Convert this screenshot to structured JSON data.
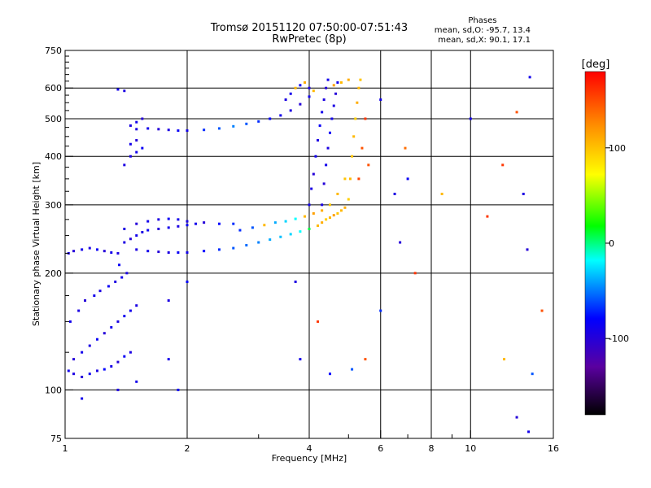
{
  "header": {
    "title_line1": "Tromsø 20151120 07:50:00-07:51:43",
    "title_line2": "RwPretec (8p)"
  },
  "phases": {
    "heading": "Phases",
    "o_line": "mean, sd,O: -95.7, 13.4",
    "x_line": "mean, sd,X:  90.1, 17.1"
  },
  "chart_data": {
    "type": "scatter",
    "xlabel": "Frequency [MHz]",
    "ylabel": "Stationary phase Virtual Height [km]",
    "x_scale": "log",
    "y_scale": "log",
    "xlim": [
      1,
      16
    ],
    "ylim": [
      75,
      750
    ],
    "x_ticks": [
      1,
      2,
      4,
      6,
      8,
      10,
      16
    ],
    "x_minor_ticks": [
      3,
      5,
      7,
      9
    ],
    "y_ticks": [
      75,
      100,
      200,
      300,
      400,
      500,
      600,
      750
    ],
    "y_minor_ticks": [
      125,
      150,
      175,
      225,
      250,
      275,
      325,
      350,
      375,
      425,
      450,
      475,
      525,
      550,
      575,
      625,
      650,
      675,
      700,
      725
    ],
    "grid": true,
    "colorbar": {
      "label": "[deg]",
      "range": [
        -180,
        180
      ],
      "ticks": [
        100,
        0,
        -100
      ],
      "colors": [
        "#000000",
        "#5a00a0",
        "#0000ff",
        "#00ffff",
        "#00ff00",
        "#ffff00",
        "#ff8800",
        "#ff0000"
      ]
    },
    "points": [
      [
        1.02,
        112,
        -90
      ],
      [
        1.05,
        110,
        -95
      ],
      [
        1.1,
        108,
        -100
      ],
      [
        1.15,
        110,
        -88
      ],
      [
        1.2,
        112,
        -95
      ],
      [
        1.25,
        113,
        -80
      ],
      [
        1.3,
        115,
        -92
      ],
      [
        1.35,
        118,
        -100
      ],
      [
        1.4,
        122,
        -85
      ],
      [
        1.45,
        125,
        -95
      ],
      [
        1.05,
        120,
        -100
      ],
      [
        1.1,
        125,
        -90
      ],
      [
        1.15,
        130,
        -95
      ],
      [
        1.2,
        135,
        -85
      ],
      [
        1.25,
        140,
        -100
      ],
      [
        1.3,
        145,
        -90
      ],
      [
        1.35,
        150,
        -95
      ],
      [
        1.4,
        155,
        -88
      ],
      [
        1.45,
        160,
        -90
      ],
      [
        1.5,
        165,
        -95
      ],
      [
        1.03,
        150,
        -90
      ],
      [
        1.08,
        160,
        -95
      ],
      [
        1.12,
        170,
        -100
      ],
      [
        1.18,
        175,
        -90
      ],
      [
        1.22,
        180,
        -95
      ],
      [
        1.28,
        185,
        -85
      ],
      [
        1.33,
        190,
        -95
      ],
      [
        1.38,
        195,
        -90
      ],
      [
        1.42,
        200,
        -95
      ],
      [
        1.36,
        210,
        -85
      ],
      [
        1.02,
        225,
        -95
      ],
      [
        1.05,
        228,
        -100
      ],
      [
        1.1,
        230,
        -90
      ],
      [
        1.15,
        232,
        -95
      ],
      [
        1.2,
        230,
        -85
      ],
      [
        1.25,
        228,
        -100
      ],
      [
        1.3,
        226,
        -90
      ],
      [
        1.35,
        225,
        -95
      ],
      [
        1.4,
        240,
        -95
      ],
      [
        1.45,
        245,
        -100
      ],
      [
        1.5,
        250,
        -90
      ],
      [
        1.55,
        255,
        -95
      ],
      [
        1.6,
        258,
        -85
      ],
      [
        1.7,
        260,
        -100
      ],
      [
        1.8,
        262,
        -90
      ],
      [
        1.9,
        264,
        -95
      ],
      [
        2.0,
        266,
        -85
      ],
      [
        2.1,
        268,
        -90
      ],
      [
        1.4,
        260,
        -95
      ],
      [
        1.5,
        268,
        -100
      ],
      [
        1.6,
        272,
        -90
      ],
      [
        1.7,
        275,
        -95
      ],
      [
        1.8,
        276,
        -85
      ],
      [
        1.9,
        275,
        -90
      ],
      [
        2.0,
        272,
        -95
      ],
      [
        2.2,
        270,
        -100
      ],
      [
        2.4,
        268,
        -80
      ],
      [
        2.6,
        268,
        -70
      ],
      [
        1.5,
        230,
        -95
      ],
      [
        1.6,
        228,
        -90
      ],
      [
        1.7,
        227,
        -100
      ],
      [
        1.8,
        226,
        -95
      ],
      [
        1.9,
        226,
        -85
      ],
      [
        2.0,
        226,
        -90
      ],
      [
        2.2,
        228,
        -80
      ],
      [
        2.4,
        230,
        -70
      ],
      [
        2.6,
        232,
        -60
      ],
      [
        2.8,
        236,
        -55
      ],
      [
        3.0,
        240,
        -50
      ],
      [
        3.2,
        244,
        -40
      ],
      [
        3.4,
        248,
        -35
      ],
      [
        3.6,
        252,
        -30
      ],
      [
        3.8,
        256,
        -20
      ],
      [
        4.0,
        260,
        10
      ],
      [
        2.7,
        258,
        -70
      ],
      [
        2.9,
        262,
        -60
      ],
      [
        3.1,
        266,
        110
      ],
      [
        3.3,
        270,
        -40
      ],
      [
        3.5,
        272,
        -30
      ],
      [
        3.7,
        276,
        -20
      ],
      [
        3.9,
        280,
        110
      ],
      [
        4.1,
        285,
        120
      ],
      [
        4.3,
        290,
        115
      ],
      [
        4.5,
        300,
        105
      ],
      [
        4.7,
        320,
        110
      ],
      [
        4.9,
        350,
        105
      ],
      [
        4.2,
        265,
        110
      ],
      [
        4.3,
        270,
        115
      ],
      [
        4.4,
        275,
        100
      ],
      [
        4.5,
        278,
        110
      ],
      [
        4.6,
        282,
        120
      ],
      [
        4.7,
        285,
        105
      ],
      [
        4.8,
        290,
        110
      ],
      [
        4.9,
        295,
        115
      ],
      [
        5.0,
        310,
        100
      ],
      [
        5.05,
        350,
        110
      ],
      [
        5.1,
        400,
        105
      ],
      [
        5.15,
        450,
        110
      ],
      [
        5.2,
        500,
        100
      ],
      [
        5.25,
        550,
        115
      ],
      [
        5.3,
        600,
        110
      ],
      [
        5.35,
        630,
        105
      ],
      [
        4.0,
        300,
        -90
      ],
      [
        4.05,
        330,
        -95
      ],
      [
        4.1,
        360,
        -100
      ],
      [
        4.15,
        400,
        -90
      ],
      [
        4.2,
        440,
        -95
      ],
      [
        4.25,
        480,
        -85
      ],
      [
        4.3,
        520,
        -90
      ],
      [
        4.35,
        560,
        -95
      ],
      [
        4.4,
        600,
        -100
      ],
      [
        4.45,
        630,
        -90
      ],
      [
        4.3,
        300,
        -95
      ],
      [
        4.35,
        340,
        -100
      ],
      [
        4.4,
        380,
        -90
      ],
      [
        4.45,
        420,
        -95
      ],
      [
        4.5,
        460,
        -85
      ],
      [
        4.55,
        500,
        -90
      ],
      [
        4.6,
        540,
        -95
      ],
      [
        4.65,
        580,
        -100
      ],
      [
        4.7,
        620,
        -90
      ],
      [
        1.5,
        470,
        -95
      ],
      [
        1.6,
        472,
        -90
      ],
      [
        1.7,
        470,
        -100
      ],
      [
        1.8,
        468,
        -95
      ],
      [
        1.9,
        466,
        -85
      ],
      [
        2.0,
        466,
        -90
      ],
      [
        2.2,
        468,
        -70
      ],
      [
        2.4,
        472,
        -60
      ],
      [
        2.6,
        478,
        -50
      ],
      [
        2.8,
        485,
        -60
      ],
      [
        3.0,
        492,
        -70
      ],
      [
        3.2,
        500,
        -80
      ],
      [
        3.4,
        510,
        -90
      ],
      [
        3.6,
        525,
        -95
      ],
      [
        3.8,
        545,
        -100
      ],
      [
        4.0,
        570,
        -90
      ],
      [
        1.45,
        480,
        -95
      ],
      [
        1.5,
        490,
        -90
      ],
      [
        1.55,
        500,
        -100
      ],
      [
        1.45,
        400,
        -95
      ],
      [
        1.5,
        410,
        -90
      ],
      [
        1.55,
        420,
        -85
      ],
      [
        1.4,
        380,
        -95
      ],
      [
        1.45,
        430,
        -90
      ],
      [
        1.5,
        440,
        -100
      ],
      [
        1.35,
        595,
        -90
      ],
      [
        1.4,
        590,
        -95
      ],
      [
        3.5,
        560,
        -95
      ],
      [
        3.6,
        580,
        -90
      ],
      [
        3.7,
        600,
        110
      ],
      [
        3.8,
        610,
        -85
      ],
      [
        3.9,
        620,
        115
      ],
      [
        4.0,
        600,
        -95
      ],
      [
        4.1,
        590,
        110
      ],
      [
        4.6,
        610,
        120
      ],
      [
        4.8,
        620,
        110
      ],
      [
        5.0,
        630,
        115
      ],
      [
        5.5,
        500,
        160
      ],
      [
        5.4,
        420,
        150
      ],
      [
        5.3,
        350,
        155
      ],
      [
        5.6,
        380,
        150
      ],
      [
        6.0,
        560,
        -90
      ],
      [
        6.5,
        320,
        -95
      ],
      [
        6.7,
        240,
        -100
      ],
      [
        6.9,
        420,
        140
      ],
      [
        7.3,
        200,
        160
      ],
      [
        7.0,
        350,
        -85
      ],
      [
        8.5,
        320,
        110
      ],
      [
        10.0,
        500,
        -90
      ],
      [
        11.0,
        280,
        160
      ],
      [
        12.0,
        380,
        160
      ],
      [
        12.1,
        120,
        110
      ],
      [
        13.0,
        520,
        150
      ],
      [
        13.5,
        320,
        -95
      ],
      [
        14.0,
        640,
        -90
      ],
      [
        14.2,
        110,
        -60
      ],
      [
        13.8,
        230,
        -100
      ],
      [
        15.0,
        160,
        150
      ],
      [
        13.0,
        85,
        -100
      ],
      [
        13.9,
        78,
        -90
      ],
      [
        4.5,
        110,
        -80
      ],
      [
        5.1,
        113,
        -60
      ],
      [
        5.5,
        120,
        150
      ],
      [
        6.0,
        160,
        -70
      ],
      [
        4.2,
        150,
        160
      ],
      [
        3.8,
        120,
        -90
      ],
      [
        3.7,
        190,
        -95
      ],
      [
        1.1,
        95,
        -90
      ],
      [
        1.35,
        100,
        -95
      ],
      [
        1.5,
        105,
        -90
      ],
      [
        1.9,
        100,
        -85
      ],
      [
        1.8,
        120,
        -90
      ],
      [
        1.8,
        170,
        -95
      ],
      [
        2.0,
        190,
        -80
      ]
    ]
  }
}
